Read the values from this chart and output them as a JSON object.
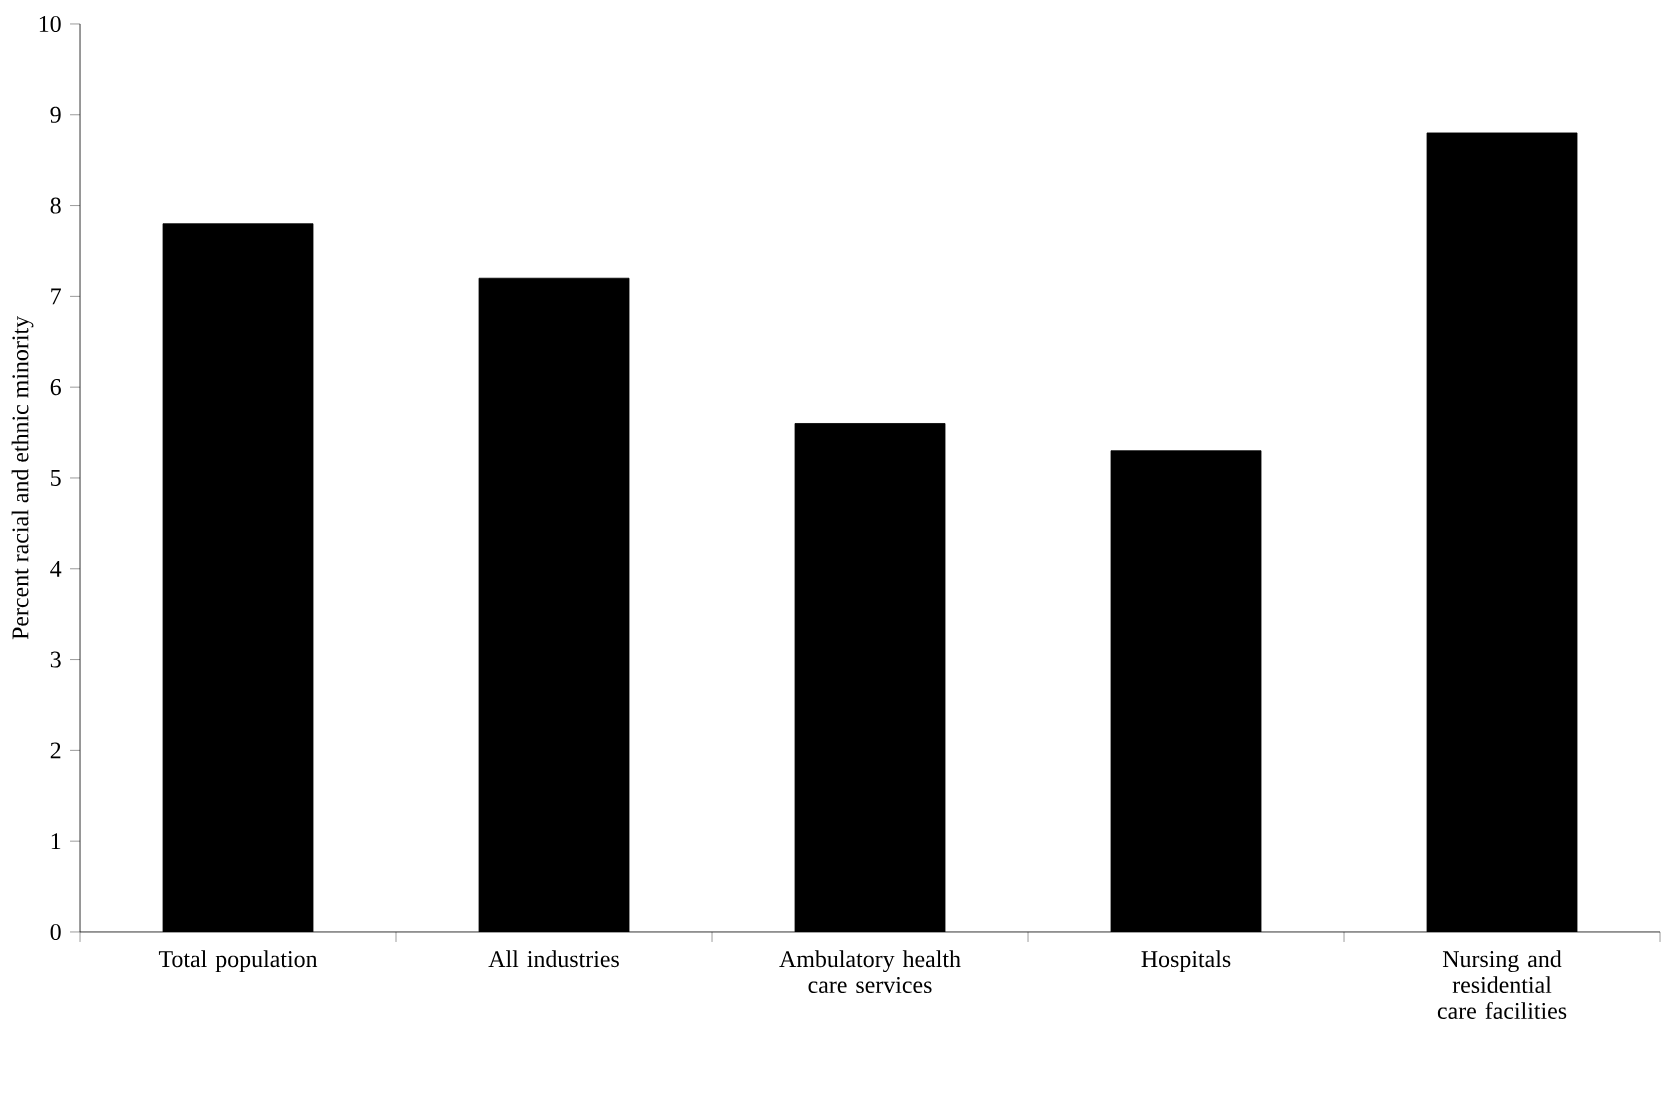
{
  "chart_data": {
    "type": "bar",
    "ylabel": "Percent racial and ethnic minority",
    "categories": [
      "Total population",
      "All industries",
      "Ambulatory health care services",
      "Hospitals",
      "Nursing and residential care facilities"
    ],
    "values": [
      7.8,
      7.2,
      5.6,
      5.3,
      8.8
    ],
    "color": "#000000",
    "ylim": [
      0,
      10
    ],
    "yticks": [
      0,
      1,
      2,
      3,
      4,
      5,
      6,
      7,
      8,
      9,
      10
    ],
    "grid": false
  }
}
